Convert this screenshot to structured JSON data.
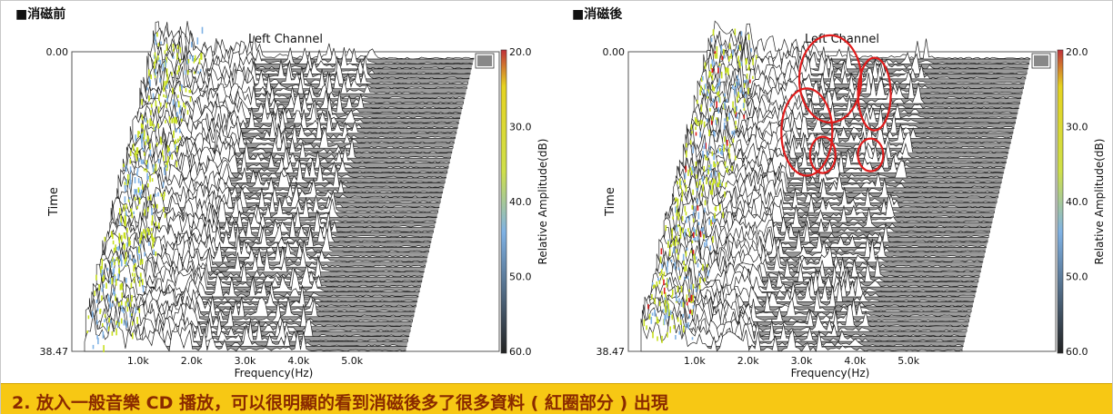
{
  "chart_data": [
    {
      "type": "waterfall",
      "panel_label": "■消磁前",
      "title": "Left Channel",
      "xlabel": "Frequency(Hz)",
      "ylabel": "Time",
      "zlabel": "Relative Amplitude(dB)",
      "x_ticks": [
        "1.0k",
        "2.0k",
        "3.0k",
        "4.0k",
        "5.0k"
      ],
      "time_range": [
        "0.00",
        "38.47"
      ],
      "amplitude_ticks": [
        "20.0",
        "30.0",
        "40.0",
        "50.0",
        "60.0"
      ],
      "highlights": []
    },
    {
      "type": "waterfall",
      "panel_label": "■消磁後",
      "title": "Left Channel",
      "xlabel": "Frequency(Hz)",
      "ylabel": "Time",
      "zlabel": "Relative Amplitude(dB)",
      "x_ticks": [
        "1.0k",
        "2.0k",
        "3.0k",
        "4.0k",
        "5.0k"
      ],
      "time_range": [
        "0.00",
        "38.47"
      ],
      "amplitude_ticks": [
        "20.0",
        "30.0",
        "40.0",
        "50.0",
        "60.0"
      ],
      "highlights": [
        {
          "freq_hz": 2400,
          "time": 5
        },
        {
          "freq_hz": 3300,
          "time": 7
        },
        {
          "freq_hz": 2200,
          "time": 12
        },
        {
          "freq_hz": 2600,
          "time": 15
        },
        {
          "freq_hz": 3500,
          "time": 15
        }
      ]
    }
  ],
  "colors": {
    "highlight": "#e01b1b",
    "low_freq": "#c8e020",
    "mid": "#7fb2e5",
    "trace": "#222222",
    "footer_bg": "#f7c814",
    "footer_text": "#8a2a00"
  },
  "footer": {
    "text": "2. 放入一般音樂 CD 播放，可以很明顯的看到消磁後多了很多資料 ( 紅圈部分 ) 出現"
  }
}
